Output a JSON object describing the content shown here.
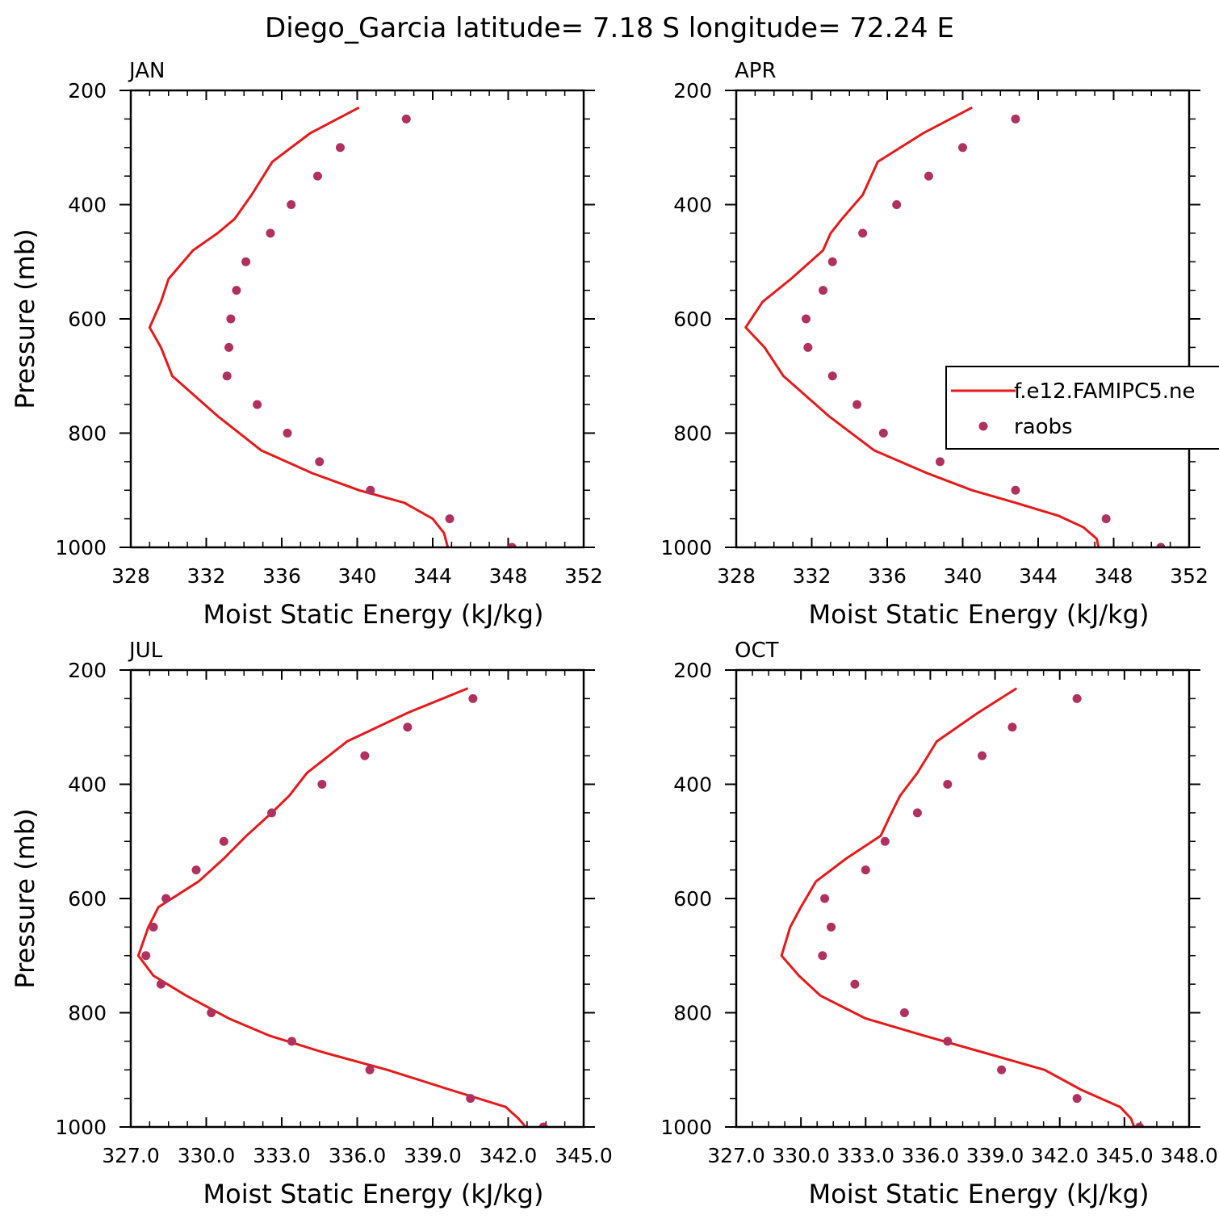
{
  "figure": {
    "title": "Diego_Garcia  latitude= 7.18 S longitude= 72.24 E"
  },
  "colors": {
    "model_line": "#e41a1c",
    "obs_marker": "#b03060"
  },
  "legend": {
    "placement": "right, in APR panel, clipped at figure edge",
    "entries": [
      {
        "label": "f.e12.FAMIPC5.ne",
        "style": "line"
      },
      {
        "label": "raobs",
        "style": "marker"
      }
    ]
  },
  "chart_data": [
    {
      "type": "line",
      "panel_label": "JAN",
      "xlabel": "Moist Static Energy (kJ/kg)",
      "ylabel": "Pressure (mb)",
      "xlim": [
        328,
        352
      ],
      "ylim": [
        200,
        1000
      ],
      "y_reversed": true,
      "xticks": [
        "328",
        "332",
        "336",
        "340",
        "344",
        "348",
        "352"
      ],
      "yticks": [
        "200",
        "400",
        "600",
        "800",
        "1000"
      ],
      "series": [
        {
          "style": "line",
          "x": [
            340.1,
            337.5,
            335.5,
            334.4,
            333.5,
            332.6,
            331.3,
            330.0,
            329.6,
            329.0,
            329.6,
            330.2,
            332.6,
            334.9,
            337.6,
            340.1,
            342.5,
            344.0,
            344.6,
            344.8
          ],
          "y": [
            230,
            275,
            325,
            383,
            425,
            450,
            480,
            530,
            570,
            615,
            650,
            700,
            770,
            830,
            870,
            900,
            922,
            950,
            975,
            1000
          ]
        },
        {
          "style": "marker",
          "x": [
            342.6,
            339.1,
            337.9,
            336.5,
            335.4,
            334.1,
            333.6,
            333.3,
            333.2,
            333.1,
            334.7,
            336.3,
            338.0,
            340.7,
            344.9,
            348.2
          ],
          "y": [
            250,
            300,
            350,
            400,
            450,
            500,
            550,
            600,
            650,
            700,
            750,
            800,
            850,
            900,
            950,
            1000
          ]
        }
      ]
    },
    {
      "type": "line",
      "panel_label": "APR",
      "xlabel": "Moist Static Energy (kJ/kg)",
      "ylabel": "",
      "xlim": [
        328,
        352
      ],
      "ylim": [
        200,
        1000
      ],
      "y_reversed": true,
      "xticks": [
        "328",
        "332",
        "336",
        "340",
        "344",
        "348",
        "352"
      ],
      "yticks": [
        "200",
        "400",
        "600",
        "800",
        "1000"
      ],
      "series": [
        {
          "style": "line",
          "x": [
            340.5,
            337.9,
            335.5,
            334.7,
            333.6,
            333.0,
            332.6,
            330.9,
            329.4,
            328.5,
            329.5,
            330.5,
            332.9,
            335.3,
            338.1,
            340.5,
            342.8,
            345.1,
            346.4,
            347.1,
            347.2
          ],
          "y": [
            230,
            275,
            325,
            383,
            425,
            450,
            480,
            530,
            570,
            615,
            650,
            700,
            770,
            830,
            870,
            900,
            922,
            945,
            965,
            985,
            1000
          ]
        },
        {
          "style": "marker",
          "x": [
            342.8,
            340.0,
            338.2,
            336.5,
            334.7,
            333.1,
            332.6,
            331.7,
            331.8,
            333.1,
            334.4,
            335.8,
            338.8,
            342.8,
            347.6,
            350.5
          ],
          "y": [
            250,
            300,
            350,
            400,
            450,
            500,
            550,
            600,
            650,
            700,
            750,
            800,
            850,
            900,
            950,
            1000
          ]
        }
      ]
    },
    {
      "type": "line",
      "panel_label": "JUL",
      "xlabel": "Moist Static Energy (kJ/kg)",
      "ylabel": "Pressure (mb)",
      "xlim": [
        327.0,
        345.0
      ],
      "ylim": [
        200,
        1000
      ],
      "y_reversed": true,
      "xticks": [
        "327.0",
        "330.0",
        "333.0",
        "336.0",
        "339.0",
        "342.0",
        "345.0"
      ],
      "yticks": [
        "200",
        "400",
        "600",
        "800",
        "1000"
      ],
      "series": [
        {
          "style": "line",
          "x": [
            340.4,
            338.0,
            335.6,
            334.0,
            333.3,
            332.6,
            331.6,
            330.7,
            329.7,
            328.1,
            327.7,
            327.3,
            327.9,
            329.2,
            330.9,
            332.5,
            334.7,
            337.2,
            339.7,
            341.9,
            342.4,
            342.8
          ],
          "y": [
            232,
            275,
            325,
            380,
            420,
            450,
            490,
            530,
            570,
            615,
            650,
            700,
            735,
            770,
            810,
            840,
            870,
            900,
            935,
            965,
            985,
            1005
          ]
        },
        {
          "style": "marker",
          "x": [
            340.6,
            338.0,
            336.3,
            334.6,
            332.6,
            330.7,
            329.6,
            328.4,
            327.9,
            327.6,
            328.2,
            330.2,
            333.4,
            336.5,
            340.5,
            343.4
          ],
          "y": [
            250,
            300,
            350,
            400,
            450,
            500,
            550,
            600,
            650,
            700,
            750,
            800,
            850,
            900,
            950,
            1000
          ]
        }
      ]
    },
    {
      "type": "line",
      "panel_label": "OCT",
      "xlabel": "Moist Static Energy (kJ/kg)",
      "ylabel": "",
      "xlim": [
        327.0,
        348.0
      ],
      "ylim": [
        200,
        1000
      ],
      "y_reversed": true,
      "xticks": [
        "327.0",
        "330.0",
        "333.0",
        "336.0",
        "339.0",
        "342.0",
        "345.0",
        "348.0"
      ],
      "yticks": [
        "200",
        "400",
        "600",
        "800",
        "1000"
      ],
      "series": [
        {
          "style": "line",
          "x": [
            340.0,
            338.2,
            336.3,
            335.4,
            334.6,
            334.2,
            333.7,
            332.1,
            330.7,
            330.0,
            329.5,
            329.1,
            329.9,
            330.9,
            333.0,
            335.7,
            338.5,
            341.3,
            343.0,
            344.8,
            345.3,
            345.5
          ],
          "y": [
            232,
            275,
            325,
            380,
            420,
            450,
            490,
            530,
            570,
            615,
            650,
            700,
            735,
            770,
            810,
            840,
            870,
            900,
            935,
            965,
            985,
            1005
          ]
        },
        {
          "style": "marker",
          "x": [
            342.8,
            339.8,
            338.4,
            336.8,
            335.4,
            333.9,
            333.0,
            331.1,
            331.4,
            331.0,
            332.5,
            334.8,
            336.8,
            339.3,
            342.8,
            345.7
          ],
          "y": [
            250,
            300,
            350,
            400,
            450,
            500,
            550,
            600,
            650,
            700,
            750,
            800,
            850,
            900,
            950,
            1000
          ]
        }
      ]
    }
  ]
}
